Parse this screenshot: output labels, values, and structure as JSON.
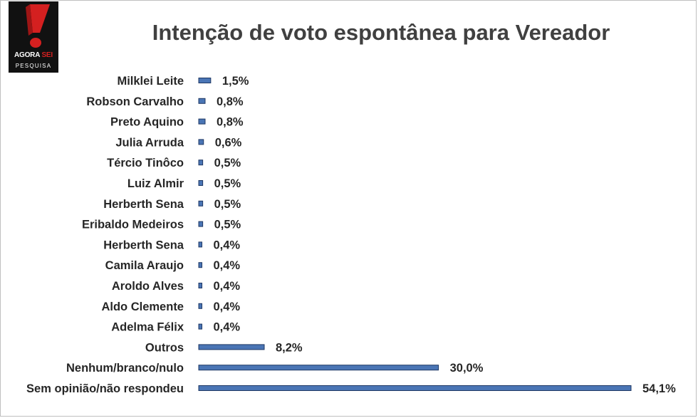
{
  "logo": {
    "brand_main": "AGORA",
    "brand_accent": "SEI",
    "brand_sub": "PESQUISA",
    "colors": {
      "background": "#111111",
      "accent": "#d42020",
      "text": "#ffffff"
    }
  },
  "chart_data": {
    "type": "bar",
    "orientation": "horizontal",
    "title": "Intenção de voto espontânea para Vereador",
    "xlabel": "",
    "ylabel": "",
    "xlim": [
      0,
      54.1
    ],
    "grid": false,
    "legend": "none",
    "bar_color": "#4a75b5",
    "categories": [
      "Milklei Leite",
      "Robson Carvalho",
      "Preto Aquino",
      "Julia Arruda",
      "Tércio Tinôco",
      "Luiz Almir",
      "Herberth Sena",
      "Eribaldo Medeiros",
      "Herberth Sena",
      "Camila Araujo",
      "Aroldo Alves",
      "Aldo Clemente",
      "Adelma Félix",
      "Outros",
      "Nenhum/branco/nulo",
      "Sem opinião/não respondeu"
    ],
    "values": [
      1.5,
      0.8,
      0.8,
      0.6,
      0.5,
      0.5,
      0.5,
      0.5,
      0.4,
      0.4,
      0.4,
      0.4,
      0.4,
      8.2,
      30.0,
      54.1
    ],
    "value_labels": [
      "1,5%",
      "0,8%",
      "0,8%",
      "0,6%",
      "0,5%",
      "0,5%",
      "0,5%",
      "0,5%",
      "0,4%",
      "0,4%",
      "0,4%",
      "0,4%",
      "0,4%",
      "8,2%",
      "30,0%",
      "54,1%"
    ]
  }
}
